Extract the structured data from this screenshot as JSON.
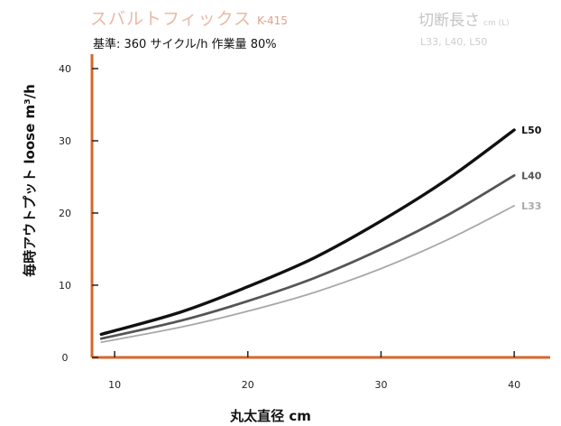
{
  "header": {
    "title": "スバルトフィックス",
    "model": "K-415",
    "basis": "基準: 360 サイクル/h 作業量 80%",
    "cut_length_title": "切断長さ",
    "cut_length_unit": "cm (L)",
    "cut_length_values": "L33, L40, L50"
  },
  "colors": {
    "axis": "#d8662a",
    "L50": "#111111",
    "L40": "#555555",
    "L33": "#a8a8a8",
    "title": "#e9b9a6"
  },
  "chart_data": {
    "type": "line",
    "xlabel": "丸太直径 cm",
    "ylabel": "毎時アウトプット loose m³/h",
    "xlim": [
      7,
      42
    ],
    "ylim": [
      0,
      42
    ],
    "x_ticks": [
      "10",
      "20",
      "30",
      "40"
    ],
    "y_ticks": [
      "0",
      "10",
      "20",
      "30",
      "40"
    ],
    "grid": false,
    "series": [
      {
        "name": "L50",
        "x": [
          9,
          15,
          20,
          25,
          30,
          35,
          40
        ],
        "values": [
          3.2,
          6.3,
          9.8,
          13.8,
          18.9,
          24.7,
          31.5
        ]
      },
      {
        "name": "L40",
        "x": [
          9,
          15,
          20,
          25,
          30,
          35,
          40
        ],
        "values": [
          2.6,
          5.1,
          7.8,
          11.0,
          15.0,
          19.7,
          25.2
        ]
      },
      {
        "name": "L33",
        "x": [
          9,
          15,
          20,
          25,
          30,
          35,
          40
        ],
        "values": [
          2.1,
          4.2,
          6.4,
          9.0,
          12.3,
          16.3,
          21.0
        ]
      }
    ]
  }
}
